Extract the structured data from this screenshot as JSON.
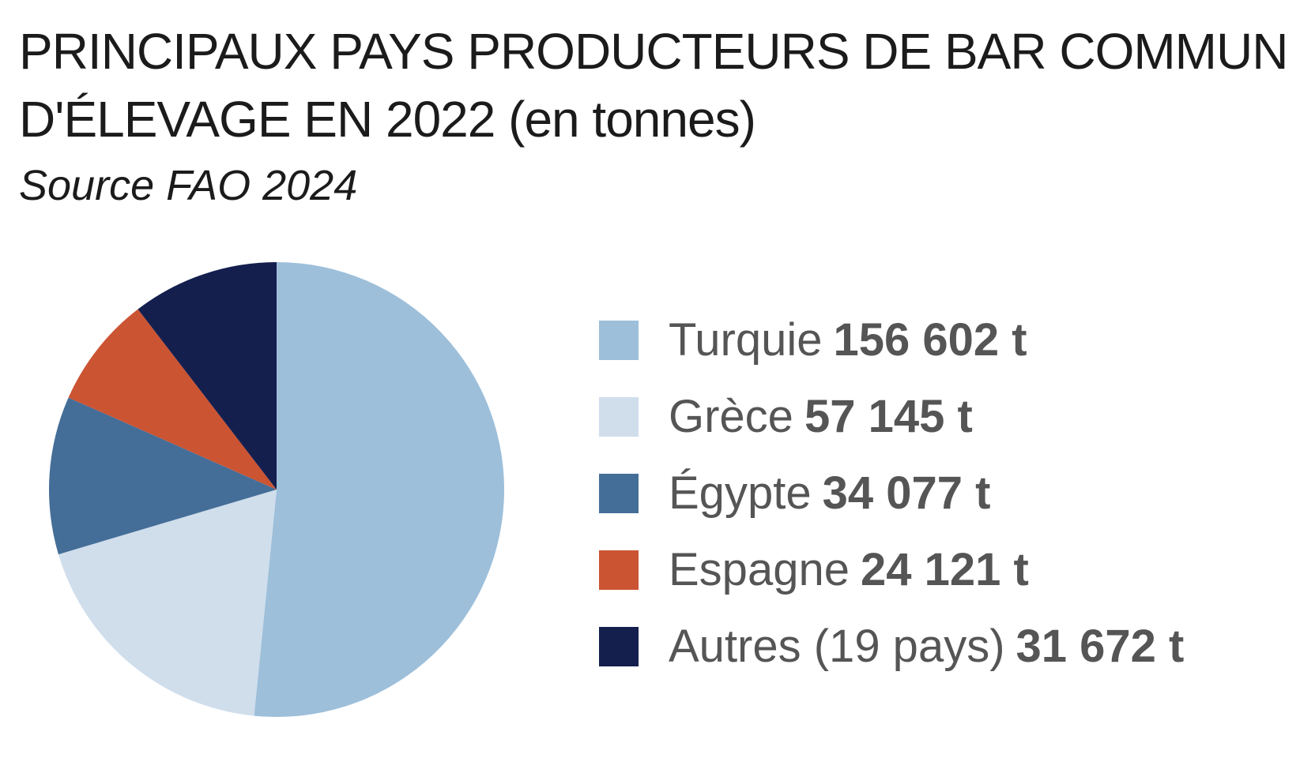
{
  "chart_data": {
    "type": "pie",
    "title": "PRINCIPAUX PAYS PRODUCTEURS DE BAR COMMUN",
    "title_line2": "D'ÉLEVAGE EN 2022 (en tonnes)",
    "subtitle": "Source FAO 2024",
    "legend_position": "right",
    "slices": [
      {
        "label": "Turquie",
        "value": 156602,
        "value_label": "156 602 t",
        "color": "#9dbfda"
      },
      {
        "label": "Grèce",
        "value": 57145,
        "value_label": "57 145 t",
        "color": "#d0deec"
      },
      {
        "label": "Égypte",
        "value": 34077,
        "value_label": "34 077 t",
        "color": "#446e98"
      },
      {
        "label": "Espagne",
        "value": 24121,
        "value_label": "24 121 t",
        "color": "#cb5433"
      },
      {
        "label": "Autres (19 pays)",
        "value": 31672,
        "value_label": "31 672 t",
        "color": "#141f4e"
      }
    ]
  }
}
